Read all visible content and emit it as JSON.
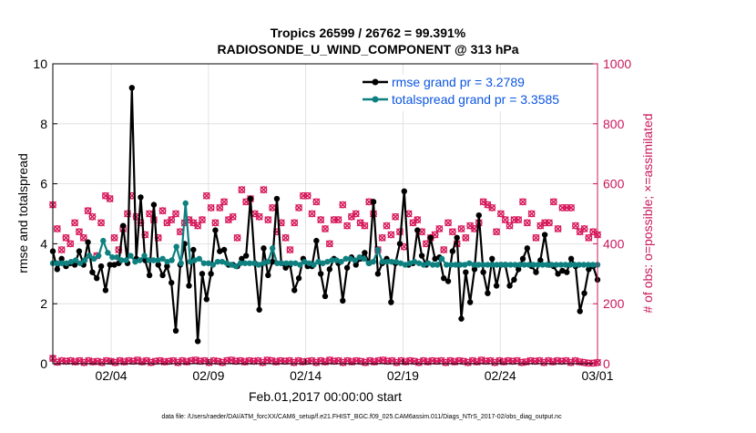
{
  "chart_data": {
    "type": "line",
    "title_line1": "Tropics 26599 / 26762 = 99.391%",
    "title_line2": "RADIOSONDE_U_WIND_COMPONENT @ 313 hPa",
    "xlabel": "Feb.01,2017 00:00:00 start",
    "ylabel_left": "rmse and totalspread",
    "ylabel_right": "# of obs: o=possible; ×=assimilated",
    "footer": "data file: /Users/raeder/DAI/ATM_forcXX/CAM6_setup/f.e21.FHIST_BGC.f09_025.CAM6assim.011/Diags_NTrS_2017-02/obs_diag_output.nc",
    "xlim": [
      1.0,
      29.0
    ],
    "ylim_left": [
      0,
      10
    ],
    "ylim_right": [
      0,
      1000
    ],
    "x_ticks": [
      {
        "value": 4,
        "label": "02/04"
      },
      {
        "value": 9,
        "label": "02/09"
      },
      {
        "value": 14,
        "label": "02/14"
      },
      {
        "value": 19,
        "label": "02/19"
      },
      {
        "value": 24,
        "label": "02/24"
      },
      {
        "value": 29,
        "label": "03/01"
      }
    ],
    "y_ticks_left": [
      0,
      2,
      4,
      6,
      8,
      10
    ],
    "y_ticks_right": [
      0,
      200,
      400,
      600,
      800,
      1000
    ],
    "legend_position": "top-right",
    "colors": {
      "rmse": "#000000",
      "spread": "#0e8080",
      "obs": "#d6175a",
      "legend_text": "#0b55e0",
      "right_axis": "#c8185a"
    },
    "series": [
      {
        "name": "rmse grand pr = 3.2789",
        "key": "rmse",
        "values": [
          3.75,
          3.15,
          3.5,
          3.25,
          3.35,
          3.3,
          3.75,
          3.3,
          4.05,
          3.05,
          2.85,
          3.25,
          2.45,
          3.3,
          3.3,
          3.35,
          4.6,
          3.35,
          9.2,
          3.5,
          5.55,
          3.45,
          2.95,
          5.3,
          3.3,
          2.95,
          3.25,
          2.7,
          1.1,
          3.3,
          4.0,
          2.6,
          3.8,
          0.75,
          3.0,
          2.15,
          3.0,
          4.45,
          3.75,
          3.8,
          3.3,
          3.3,
          3.25,
          3.5,
          3.6,
          5.5,
          3.35,
          1.8,
          3.85,
          2.95,
          3.4,
          5.5,
          3.35,
          3.2,
          3.3,
          2.45,
          2.85,
          3.5,
          3.25,
          3.25,
          4.1,
          3.0,
          2.25,
          3.15,
          3.5,
          3.35,
          2.1,
          3.2,
          3.55,
          3.3,
          3.5,
          3.7,
          3.35,
          5.4,
          3.0,
          3.35,
          3.5,
          2.05,
          3.35,
          4.0,
          5.75,
          3.3,
          3.35,
          4.45,
          3.6,
          3.3,
          4.2,
          3.5,
          3.55,
          2.85,
          2.75,
          3.75,
          4.2,
          1.5,
          3.05,
          2.05,
          3.15,
          4.95,
          3.05,
          2.35,
          3.5,
          2.6,
          3.3,
          3.3,
          2.6,
          2.8,
          3.15,
          3.5,
          3.85,
          3.25,
          3.05,
          3.45,
          4.3,
          3.3,
          3.25,
          3.0,
          3.1,
          3.05,
          3.5,
          3.25,
          1.75,
          2.35,
          3.15,
          3.25,
          2.8
        ],
        "mean": 3.2789
      },
      {
        "name": "totalspread grand pr = 3.3585",
        "key": "spread",
        "values": [
          3.35,
          3.35,
          3.35,
          3.35,
          3.4,
          3.45,
          3.35,
          3.45,
          3.6,
          3.5,
          3.6,
          4.1,
          3.7,
          3.55,
          3.55,
          3.45,
          3.45,
          3.6,
          3.4,
          3.45,
          3.6,
          3.45,
          3.45,
          3.45,
          3.5,
          3.4,
          3.45,
          3.9,
          3.35,
          5.35,
          3.4,
          3.45,
          3.5,
          3.35,
          3.35,
          3.3,
          3.4,
          3.4,
          3.35,
          3.3,
          3.25,
          3.35,
          3.35,
          3.35,
          3.35,
          3.3,
          3.35,
          3.4,
          3.85,
          3.35,
          3.35,
          3.35,
          3.35,
          3.35,
          3.3,
          3.4,
          3.35,
          3.3,
          3.4,
          3.35,
          3.4,
          3.45,
          3.45,
          3.4,
          3.5,
          3.5,
          3.45,
          3.55,
          3.5,
          3.35,
          3.4,
          3.8,
          3.4,
          3.4,
          3.4,
          3.4,
          3.35,
          3.3,
          3.35,
          3.4,
          3.35,
          3.3,
          3.35,
          3.3,
          3.3,
          3.5,
          3.3,
          3.3,
          3.3,
          3.3,
          3.3,
          3.35,
          3.3,
          3.3,
          3.3,
          3.3,
          3.3,
          3.3,
          3.3,
          3.3,
          3.3,
          3.3,
          3.3,
          3.3,
          3.3,
          3.3,
          3.3,
          3.3,
          3.3,
          3.3,
          3.3,
          3.3,
          3.3,
          3.3,
          3.3,
          3.3,
          3.3,
          3.3,
          3.3,
          3.3
        ],
        "mean": 3.3585
      }
    ],
    "obs_possible": [
      530,
      450,
      380,
      420,
      400,
      470,
      440,
      420,
      510,
      490,
      360,
      470,
      560,
      550,
      420,
      380,
      450,
      500,
      560,
      490,
      470,
      430,
      500,
      480,
      420,
      510,
      470,
      480,
      500,
      440,
      470,
      480,
      470,
      460,
      480,
      560,
      520,
      470,
      520,
      540,
      480,
      490,
      420,
      580,
      540,
      550,
      500,
      490,
      580,
      480,
      520,
      440,
      470,
      420,
      380,
      470,
      520,
      560,
      560,
      500,
      540,
      480,
      450,
      400,
      480,
      480,
      530,
      460,
      490,
      500,
      470,
      460,
      540,
      500,
      380,
      420,
      460,
      430,
      490,
      440,
      390,
      500,
      470,
      480,
      440,
      400,
      420,
      430,
      450,
      380,
      470,
      440,
      400,
      450,
      420,
      460,
      450,
      470,
      540,
      530,
      520,
      440,
      500,
      480,
      460,
      480,
      480,
      540,
      470,
      500,
      420,
      460,
      470,
      470,
      540,
      450,
      520,
      520,
      520,
      460,
      440,
      450,
      420,
      440,
      430
    ],
    "obs_assimilated_sample": [
      18,
      5,
      10,
      8,
      10,
      6,
      10,
      4,
      10,
      6,
      8,
      4,
      10,
      8,
      4,
      10,
      6,
      10,
      8,
      12,
      6,
      10,
      4,
      8,
      10,
      6,
      8,
      10,
      4,
      10,
      6,
      10,
      12,
      8,
      10,
      4,
      10,
      8,
      4,
      10,
      12,
      8,
      10,
      6,
      10,
      8,
      10,
      4,
      12,
      10,
      6,
      10,
      8,
      10,
      4,
      10,
      6,
      8,
      10,
      4,
      10,
      6,
      12,
      8,
      10,
      4,
      10,
      6,
      10,
      8,
      4,
      10,
      6,
      10,
      12,
      8,
      10,
      4,
      10,
      6,
      10,
      8,
      4,
      10,
      6,
      10,
      8,
      10,
      4,
      10,
      6,
      10,
      8,
      4,
      10,
      6,
      12,
      8,
      10,
      4,
      10,
      6,
      10,
      8,
      10,
      4,
      6,
      10,
      8,
      10,
      4,
      10,
      6,
      10,
      8,
      10,
      4,
      10,
      6,
      4,
      2,
      2,
      4
    ]
  }
}
